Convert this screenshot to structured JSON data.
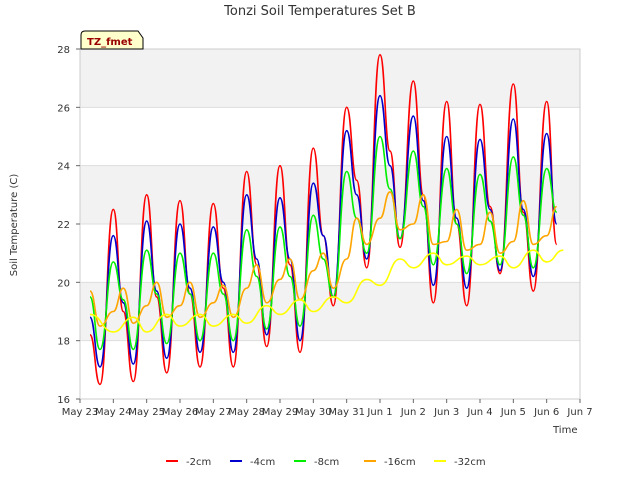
{
  "chart_data": {
    "type": "line",
    "title": "Tonzi Soil Temperatures Set B",
    "xlabel": "Time",
    "ylabel": "Soil Temperature (C)",
    "tag": "TZ_fmet",
    "xlim": [
      0,
      15
    ],
    "ylim": [
      16,
      28
    ],
    "x_ticks": [
      {
        "x": 0,
        "label": "May 23"
      },
      {
        "x": 1,
        "label": "May 24"
      },
      {
        "x": 2,
        "label": "May 25"
      },
      {
        "x": 3,
        "label": "May 26"
      },
      {
        "x": 4,
        "label": "May 27"
      },
      {
        "x": 5,
        "label": "May 28"
      },
      {
        "x": 6,
        "label": "May 29"
      },
      {
        "x": 7,
        "label": "May 30"
      },
      {
        "x": 8,
        "label": "May 31"
      },
      {
        "x": 9,
        "label": "Jun 1"
      },
      {
        "x": 10,
        "label": "Jun 2"
      },
      {
        "x": 11,
        "label": "Jun 3"
      },
      {
        "x": 12,
        "label": "Jun 4"
      },
      {
        "x": 13,
        "label": "Jun 5"
      },
      {
        "x": 14,
        "label": "Jun 6"
      },
      {
        "x": 15,
        "label": "Jun 7"
      }
    ],
    "y_ticks": [
      16,
      18,
      20,
      22,
      24,
      26,
      28
    ],
    "grid": true,
    "legend_position": "bottom",
    "x_units_note": "days after May 23",
    "series": [
      {
        "name": "-2cm",
        "color": "#ff0000",
        "x": [
          0.3,
          0.6,
          1.0,
          1.3,
          1.6,
          2.0,
          2.3,
          2.6,
          3.0,
          3.3,
          3.6,
          4.0,
          4.3,
          4.6,
          5.0,
          5.3,
          5.6,
          6.0,
          6.3,
          6.6,
          7.0,
          7.3,
          7.6,
          8.0,
          8.3,
          8.6,
          9.0,
          9.3,
          9.6,
          10.0,
          10.3,
          10.6,
          11.0,
          11.3,
          11.6,
          12.0,
          12.3,
          12.6,
          13.0,
          13.3,
          13.6,
          14.0,
          14.3
        ],
        "y": [
          18.2,
          16.5,
          22.5,
          19.0,
          16.6,
          23.0,
          19.5,
          16.9,
          22.8,
          19.6,
          17.1,
          22.7,
          19.8,
          17.1,
          23.8,
          20.6,
          17.8,
          24.0,
          20.6,
          17.6,
          24.6,
          21.6,
          19.2,
          26.0,
          23.5,
          20.5,
          27.8,
          24.5,
          21.2,
          26.9,
          23.0,
          19.3,
          26.2,
          22.0,
          19.2,
          26.1,
          22.6,
          20.3,
          26.8,
          22.4,
          19.7,
          26.2,
          21.3
        ]
      },
      {
        "name": "-4cm",
        "color": "#0000cc",
        "x": [
          0.3,
          0.6,
          1.0,
          1.3,
          1.6,
          2.0,
          2.3,
          2.6,
          3.0,
          3.3,
          3.6,
          4.0,
          4.3,
          4.6,
          5.0,
          5.3,
          5.6,
          6.0,
          6.3,
          6.6,
          7.0,
          7.3,
          7.6,
          8.0,
          8.3,
          8.6,
          9.0,
          9.3,
          9.6,
          10.0,
          10.3,
          10.6,
          11.0,
          11.3,
          11.6,
          12.0,
          12.3,
          12.6,
          13.0,
          13.3,
          13.6,
          14.0,
          14.3
        ],
        "y": [
          18.8,
          17.1,
          21.6,
          19.3,
          17.2,
          22.1,
          19.7,
          17.4,
          22.0,
          19.8,
          17.6,
          21.9,
          20.0,
          17.6,
          23.0,
          20.8,
          18.2,
          22.9,
          20.8,
          18.0,
          23.4,
          21.6,
          19.5,
          25.2,
          23.0,
          20.8,
          26.4,
          24.0,
          21.5,
          25.7,
          22.8,
          19.9,
          25.0,
          22.2,
          19.8,
          24.9,
          22.5,
          20.4,
          25.6,
          22.5,
          20.2,
          25.1,
          22.0
        ]
      },
      {
        "name": "-8cm",
        "color": "#00ee00",
        "x": [
          0.3,
          0.6,
          1.0,
          1.3,
          1.6,
          2.0,
          2.3,
          2.6,
          3.0,
          3.3,
          3.6,
          4.0,
          4.3,
          4.6,
          5.0,
          5.3,
          5.6,
          6.0,
          6.3,
          6.6,
          7.0,
          7.3,
          7.6,
          8.0,
          8.3,
          8.6,
          9.0,
          9.3,
          9.6,
          10.0,
          10.3,
          10.6,
          11.0,
          11.3,
          11.6,
          12.0,
          12.3,
          12.6,
          13.0,
          13.3,
          13.6,
          14.0,
          14.3
        ],
        "y": [
          19.5,
          17.7,
          20.7,
          19.4,
          17.7,
          21.1,
          19.6,
          17.9,
          21.0,
          19.6,
          18.0,
          21.0,
          19.6,
          18.0,
          21.8,
          20.2,
          18.4,
          21.9,
          20.2,
          18.5,
          22.3,
          20.8,
          19.5,
          23.8,
          22.2,
          21.0,
          25.0,
          23.2,
          21.5,
          24.5,
          22.6,
          20.6,
          23.9,
          22.0,
          20.3,
          23.7,
          22.1,
          20.6,
          24.3,
          22.3,
          20.5,
          23.9,
          22.4
        ]
      },
      {
        "name": "-16cm",
        "color": "#ffa500",
        "x": [
          0.3,
          0.6,
          1.0,
          1.3,
          1.6,
          2.0,
          2.3,
          2.6,
          3.0,
          3.3,
          3.6,
          4.0,
          4.3,
          4.6,
          5.0,
          5.3,
          5.6,
          6.0,
          6.3,
          6.6,
          7.0,
          7.3,
          7.6,
          8.0,
          8.3,
          8.6,
          9.0,
          9.3,
          9.6,
          10.0,
          10.3,
          10.6,
          11.0,
          11.3,
          11.6,
          12.0,
          12.3,
          12.6,
          13.0,
          13.3,
          13.6,
          14.0,
          14.3
        ],
        "y": [
          19.7,
          18.5,
          19.0,
          19.8,
          18.6,
          19.2,
          20.0,
          18.8,
          19.2,
          20.0,
          18.8,
          19.3,
          19.9,
          18.8,
          19.8,
          20.6,
          19.3,
          20.1,
          20.8,
          19.4,
          20.4,
          21.0,
          19.8,
          20.8,
          22.2,
          21.3,
          22.2,
          23.1,
          21.8,
          22.0,
          23.0,
          21.3,
          21.4,
          22.5,
          21.1,
          21.3,
          22.4,
          21.0,
          21.4,
          22.8,
          21.3,
          21.6,
          22.6
        ]
      },
      {
        "name": "-32cm",
        "color": "#ffff00",
        "x": [
          0.3,
          1.0,
          1.6,
          2.0,
          2.6,
          3.0,
          3.6,
          4.0,
          4.6,
          5.0,
          5.6,
          6.0,
          6.6,
          7.0,
          7.6,
          8.0,
          8.6,
          9.0,
          9.6,
          10.0,
          10.6,
          11.0,
          11.6,
          12.0,
          12.6,
          13.0,
          13.6,
          14.0,
          14.5
        ],
        "y": [
          18.9,
          18.3,
          18.8,
          18.3,
          18.9,
          18.5,
          18.9,
          18.5,
          18.9,
          18.6,
          19.2,
          18.9,
          19.4,
          19.0,
          19.5,
          19.3,
          20.1,
          19.9,
          20.8,
          20.5,
          21.0,
          20.6,
          20.9,
          20.6,
          20.9,
          20.5,
          21.1,
          20.7,
          21.1
        ]
      }
    ]
  }
}
